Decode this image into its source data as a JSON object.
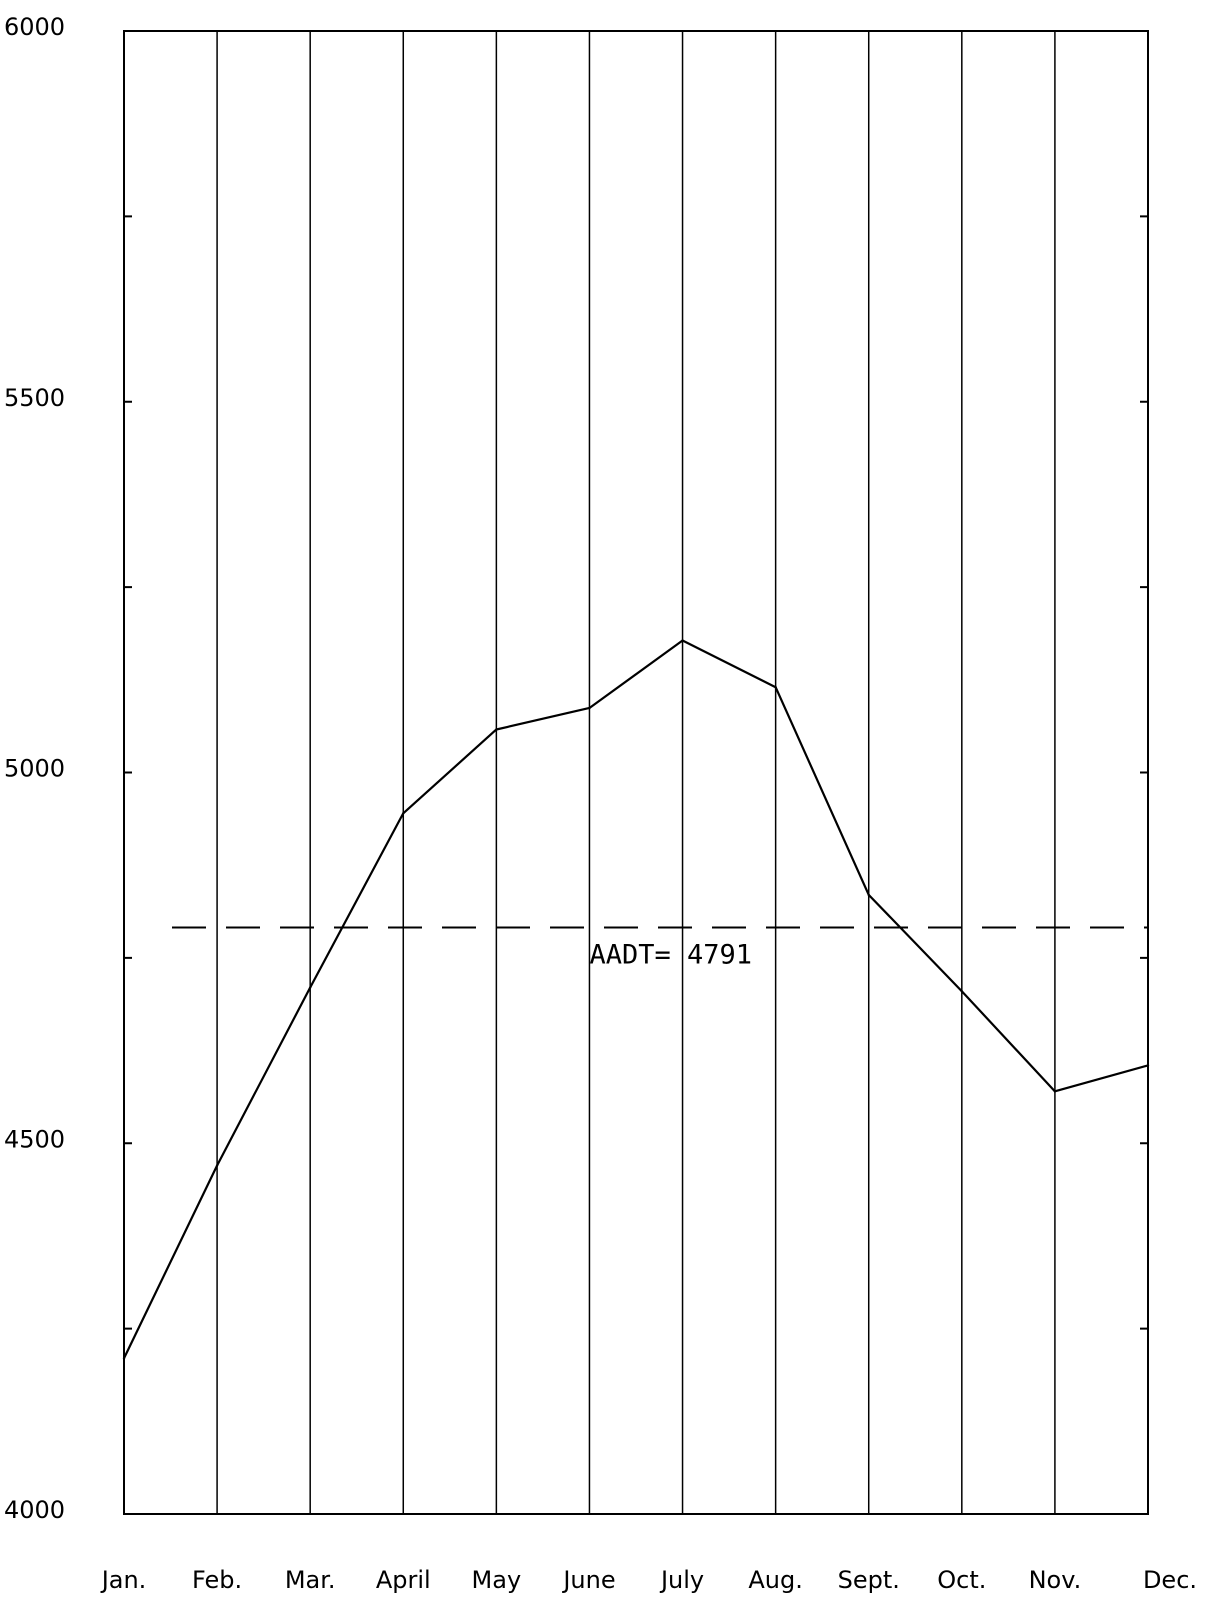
{
  "chart_data": {
    "type": "line",
    "categories": [
      "Jan.",
      "Feb.",
      "Mar.",
      "April",
      "May",
      "June",
      "July",
      "Aug.",
      "Sept.",
      "Oct.",
      "Nov.",
      "Dec."
    ],
    "series": [
      {
        "values": [
          4210,
          4470,
          4710,
          4945,
          5058,
          5087,
          5178,
          5115,
          4835,
          4705,
          4570,
          4605
        ]
      }
    ],
    "reference_line": {
      "value": 4791,
      "label": "AADT= 4791",
      "style": "dashed"
    },
    "y_tick_labels": [
      "6000",
      "5500",
      "5000",
      "4500",
      "4000"
    ],
    "y_label_values": [
      6000,
      5500,
      5000,
      4500,
      4000
    ],
    "y_minor_ticks": [
      4250,
      4750,
      5250,
      5750
    ],
    "ylim": [
      4000,
      6000
    ],
    "vertical_gridlines": true,
    "title": "",
    "xlabel": "",
    "ylabel": "",
    "colors": {
      "line": "#000000",
      "background": "#ffffff"
    }
  }
}
